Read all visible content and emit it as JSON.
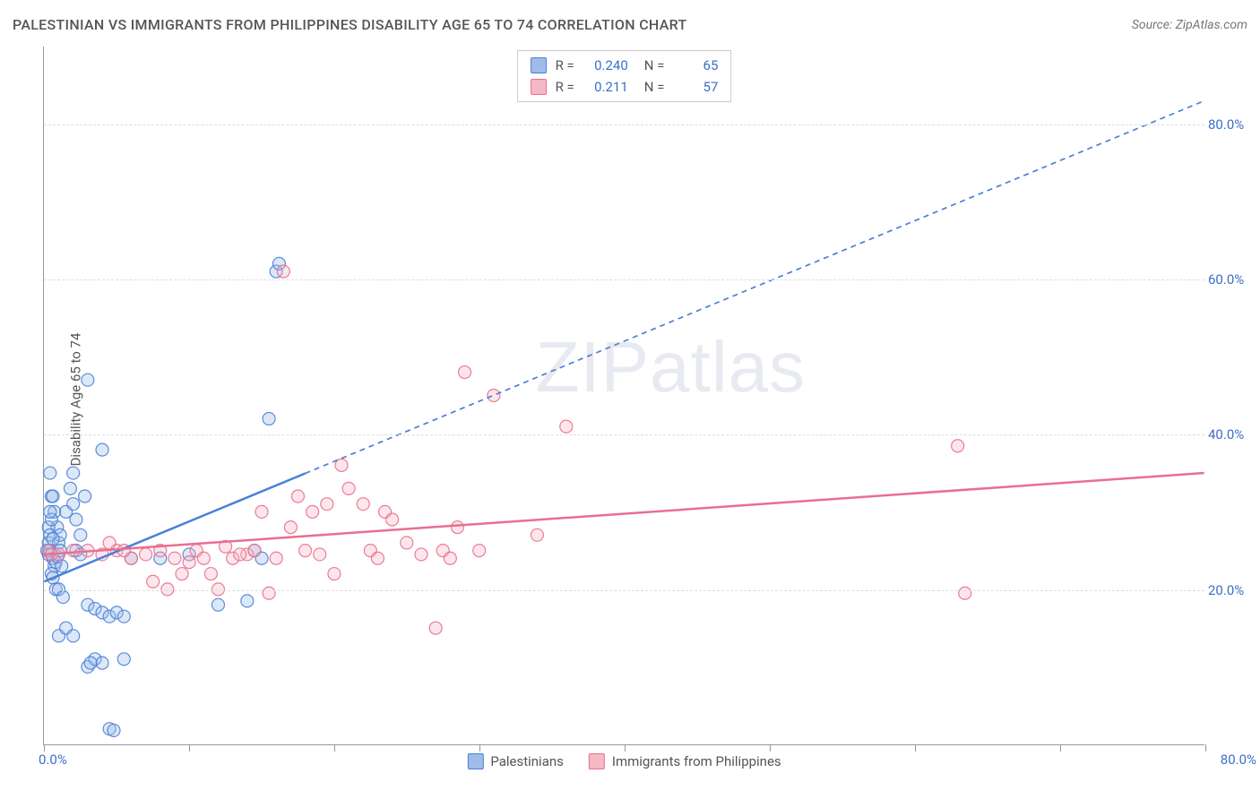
{
  "title": "PALESTINIAN VS IMMIGRANTS FROM PHILIPPINES DISABILITY AGE 65 TO 74 CORRELATION CHART",
  "source_label": "Source: ZipAtlas.com",
  "y_axis_label": "Disability Age 65 to 74",
  "watermark": "ZIPatlas",
  "chart": {
    "type": "scatter",
    "x_min": 0.0,
    "x_max": 80.0,
    "y_min": 0.0,
    "y_max": 90.0,
    "y_ticks": [
      20.0,
      40.0,
      60.0,
      80.0
    ],
    "y_tick_labels": [
      "20.0%",
      "40.0%",
      "60.0%",
      "80.0%"
    ],
    "x_ticks": [
      0,
      10,
      20,
      30,
      40,
      50,
      60,
      70,
      80
    ],
    "x_origin_label": "0.0%",
    "x_max_label": "80.0%",
    "background_color": "#ffffff",
    "grid_color": "#dddddd",
    "axis_color": "#999999",
    "label_color": "#3b6fc9",
    "marker_radius": 7,
    "marker_fill_opacity": 0.35,
    "marker_stroke_opacity": 0.9,
    "series": [
      {
        "id": "palestinians",
        "label": "Palestinians",
        "color_fill": "#9fbce8",
        "color_stroke": "#4a7fd8",
        "r_value": "0.240",
        "n_value": "65",
        "trend": {
          "x1": 0,
          "y1": 21.0,
          "x2": 80,
          "y2": 83.0,
          "solid_until_x": 18,
          "stroke_width": 2.5,
          "dash": "6,5"
        },
        "points": [
          [
            0.3,
            26
          ],
          [
            0.4,
            25
          ],
          [
            0.5,
            24.5
          ],
          [
            0.6,
            24
          ],
          [
            0.7,
            23
          ],
          [
            0.8,
            23.5
          ],
          [
            0.9,
            24.2
          ],
          [
            1.0,
            26
          ],
          [
            1.1,
            25
          ],
          [
            1.2,
            23
          ],
          [
            0.5,
            22
          ],
          [
            0.6,
            21.5
          ],
          [
            0.8,
            20
          ],
          [
            1.0,
            20
          ],
          [
            1.3,
            19
          ],
          [
            0.4,
            35
          ],
          [
            0.5,
            32
          ],
          [
            0.7,
            30
          ],
          [
            0.9,
            28
          ],
          [
            1.1,
            27
          ],
          [
            1.5,
            30
          ],
          [
            2.0,
            31
          ],
          [
            2.2,
            29
          ],
          [
            2.5,
            27
          ],
          [
            3.0,
            18
          ],
          [
            3.5,
            17.5
          ],
          [
            4.0,
            17
          ],
          [
            4.5,
            16.5
          ],
          [
            5.0,
            17
          ],
          [
            5.5,
            16.5
          ],
          [
            2.0,
            35
          ],
          [
            3.0,
            47
          ],
          [
            4.0,
            38
          ],
          [
            2.2,
            25
          ],
          [
            2.5,
            24.5
          ],
          [
            1.0,
            14
          ],
          [
            1.5,
            15
          ],
          [
            2.0,
            14
          ],
          [
            3.0,
            10
          ],
          [
            3.5,
            11
          ],
          [
            4.0,
            10.5
          ],
          [
            4.5,
            2
          ],
          [
            4.8,
            1.8
          ],
          [
            3.2,
            10.5
          ],
          [
            5.5,
            11
          ],
          [
            6.0,
            24
          ],
          [
            8.0,
            24
          ],
          [
            10.0,
            24.5
          ],
          [
            12.0,
            18
          ],
          [
            14.0,
            18.5
          ],
          [
            14.5,
            25
          ],
          [
            15.0,
            24
          ],
          [
            15.5,
            42
          ],
          [
            16.0,
            61
          ],
          [
            16.2,
            62
          ],
          [
            0.3,
            28
          ],
          [
            0.4,
            27
          ],
          [
            0.6,
            26.5
          ],
          [
            0.2,
            25
          ],
          [
            0.3,
            24.5
          ],
          [
            0.5,
            29
          ],
          [
            0.4,
            30
          ],
          [
            0.6,
            32
          ],
          [
            1.8,
            33
          ],
          [
            2.8,
            32
          ]
        ]
      },
      {
        "id": "philippines",
        "label": "Immigrants from Philippines",
        "color_fill": "#f5b8c5",
        "color_stroke": "#e86f8f",
        "r_value": "0.211",
        "n_value": "57",
        "trend": {
          "x1": 0,
          "y1": 24.5,
          "x2": 80,
          "y2": 35.0,
          "solid_until_x": 80,
          "stroke_width": 2.5,
          "dash": ""
        },
        "points": [
          [
            0.3,
            25
          ],
          [
            0.5,
            24.5
          ],
          [
            1.0,
            24.5
          ],
          [
            2.0,
            25
          ],
          [
            3.0,
            25
          ],
          [
            4.0,
            24.5
          ],
          [
            5.0,
            25
          ],
          [
            6.0,
            24
          ],
          [
            7.0,
            24.5
          ],
          [
            8.0,
            25
          ],
          [
            9.0,
            24
          ],
          [
            9.5,
            22
          ],
          [
            10.0,
            23.5
          ],
          [
            10.5,
            25
          ],
          [
            11.0,
            24
          ],
          [
            11.5,
            22
          ],
          [
            12.0,
            20
          ],
          [
            12.5,
            25.5
          ],
          [
            13.0,
            24
          ],
          [
            14.0,
            24.5
          ],
          [
            14.5,
            25
          ],
          [
            15.0,
            30
          ],
          [
            15.5,
            19.5
          ],
          [
            16.0,
            24
          ],
          [
            16.5,
            61
          ],
          [
            17.0,
            28
          ],
          [
            17.5,
            32
          ],
          [
            18.0,
            25
          ],
          [
            18.5,
            30
          ],
          [
            19.0,
            24.5
          ],
          [
            19.5,
            31
          ],
          [
            20.0,
            22
          ],
          [
            20.5,
            36
          ],
          [
            21.0,
            33
          ],
          [
            22.0,
            31
          ],
          [
            22.5,
            25
          ],
          [
            23.0,
            24
          ],
          [
            23.5,
            30
          ],
          [
            24.0,
            29
          ],
          [
            25.0,
            26
          ],
          [
            26.0,
            24.5
          ],
          [
            27.0,
            15
          ],
          [
            27.5,
            25
          ],
          [
            28.0,
            24
          ],
          [
            28.5,
            28
          ],
          [
            29.0,
            48
          ],
          [
            30.0,
            25
          ],
          [
            31.0,
            45
          ],
          [
            34.0,
            27
          ],
          [
            36.0,
            41
          ],
          [
            63.0,
            38.5
          ],
          [
            63.5,
            19.5
          ],
          [
            4.5,
            26
          ],
          [
            5.5,
            25
          ],
          [
            7.5,
            21
          ],
          [
            8.5,
            20
          ],
          [
            13.5,
            24.5
          ]
        ]
      }
    ]
  },
  "legend_top": {
    "r_prefix": "R =",
    "n_prefix": "N ="
  }
}
